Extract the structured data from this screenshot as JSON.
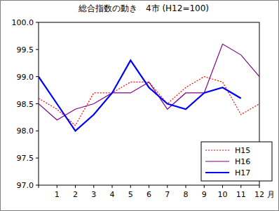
{
  "chart_data": {
    "type": "line",
    "title": "総合指数の動き　4市 (H12=100)",
    "x_label": "月",
    "categories": [
      null,
      "1",
      "2",
      "3",
      "4",
      "5",
      "6",
      "7",
      "8",
      "9",
      "10",
      "11",
      "12"
    ],
    "series": [
      {
        "name": "H15",
        "color": "#ff0000",
        "line_style": "dotted",
        "values": [
          98.6,
          98.4,
          98.1,
          98.7,
          98.7,
          98.9,
          98.9,
          98.5,
          98.8,
          99.0,
          98.9,
          98.3,
          98.5
        ]
      },
      {
        "name": "H16",
        "color": "#800080",
        "line_style": "solid",
        "values": [
          98.5,
          98.2,
          98.4,
          98.5,
          98.7,
          98.7,
          98.9,
          98.4,
          98.7,
          98.7,
          99.6,
          99.4,
          99.0
        ]
      },
      {
        "name": "H17",
        "color": "#0000ff",
        "line_style": "solid",
        "values": [
          99.0,
          98.5,
          98.0,
          98.3,
          98.7,
          99.3,
          98.8,
          98.5,
          98.4,
          98.7,
          98.8,
          98.6,
          null
        ]
      }
    ],
    "ylim": [
      97.0,
      100.0
    ],
    "yticks": [
      {
        "value": 97.0,
        "label": "97.0"
      },
      97.5,
      {
        "value": 98.0,
        "label": "98.0"
      },
      98.5,
      {
        "value": 99.0,
        "label": "99.0"
      },
      99.5,
      {
        "value": 100.0,
        "label": "100.0"
      }
    ],
    "grid": false,
    "legend": "lower right"
  }
}
